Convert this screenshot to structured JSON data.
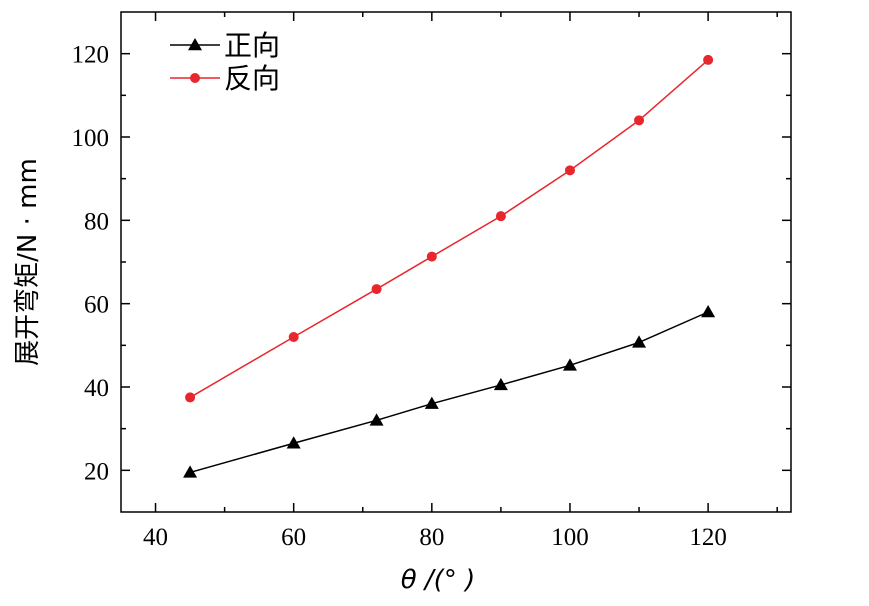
{
  "chart_data": {
    "type": "line",
    "xlabel": "θ /(°  )",
    "ylabel": "展开弯矩/N · mm",
    "xlim": [
      35,
      132
    ],
    "ylim": [
      10,
      130
    ],
    "x_ticks": [
      40,
      60,
      80,
      100,
      120
    ],
    "y_ticks": [
      20,
      40,
      60,
      80,
      100,
      120
    ],
    "grid": false,
    "legend_position": "top-left",
    "series": [
      {
        "name": "正向",
        "color": "#000000",
        "marker": "triangle",
        "x": [
          45,
          60,
          72,
          80,
          90,
          100,
          110,
          120
        ],
        "y": [
          19.5,
          26.5,
          32,
          36,
          40.5,
          45.2,
          50.7,
          58
        ]
      },
      {
        "name": "反向",
        "color": "#e8262d",
        "marker": "circle",
        "x": [
          45,
          60,
          72,
          80,
          90,
          100,
          110,
          120
        ],
        "y": [
          37.5,
          52,
          63.5,
          71.3,
          81,
          92,
          104,
          118.5
        ]
      }
    ]
  }
}
